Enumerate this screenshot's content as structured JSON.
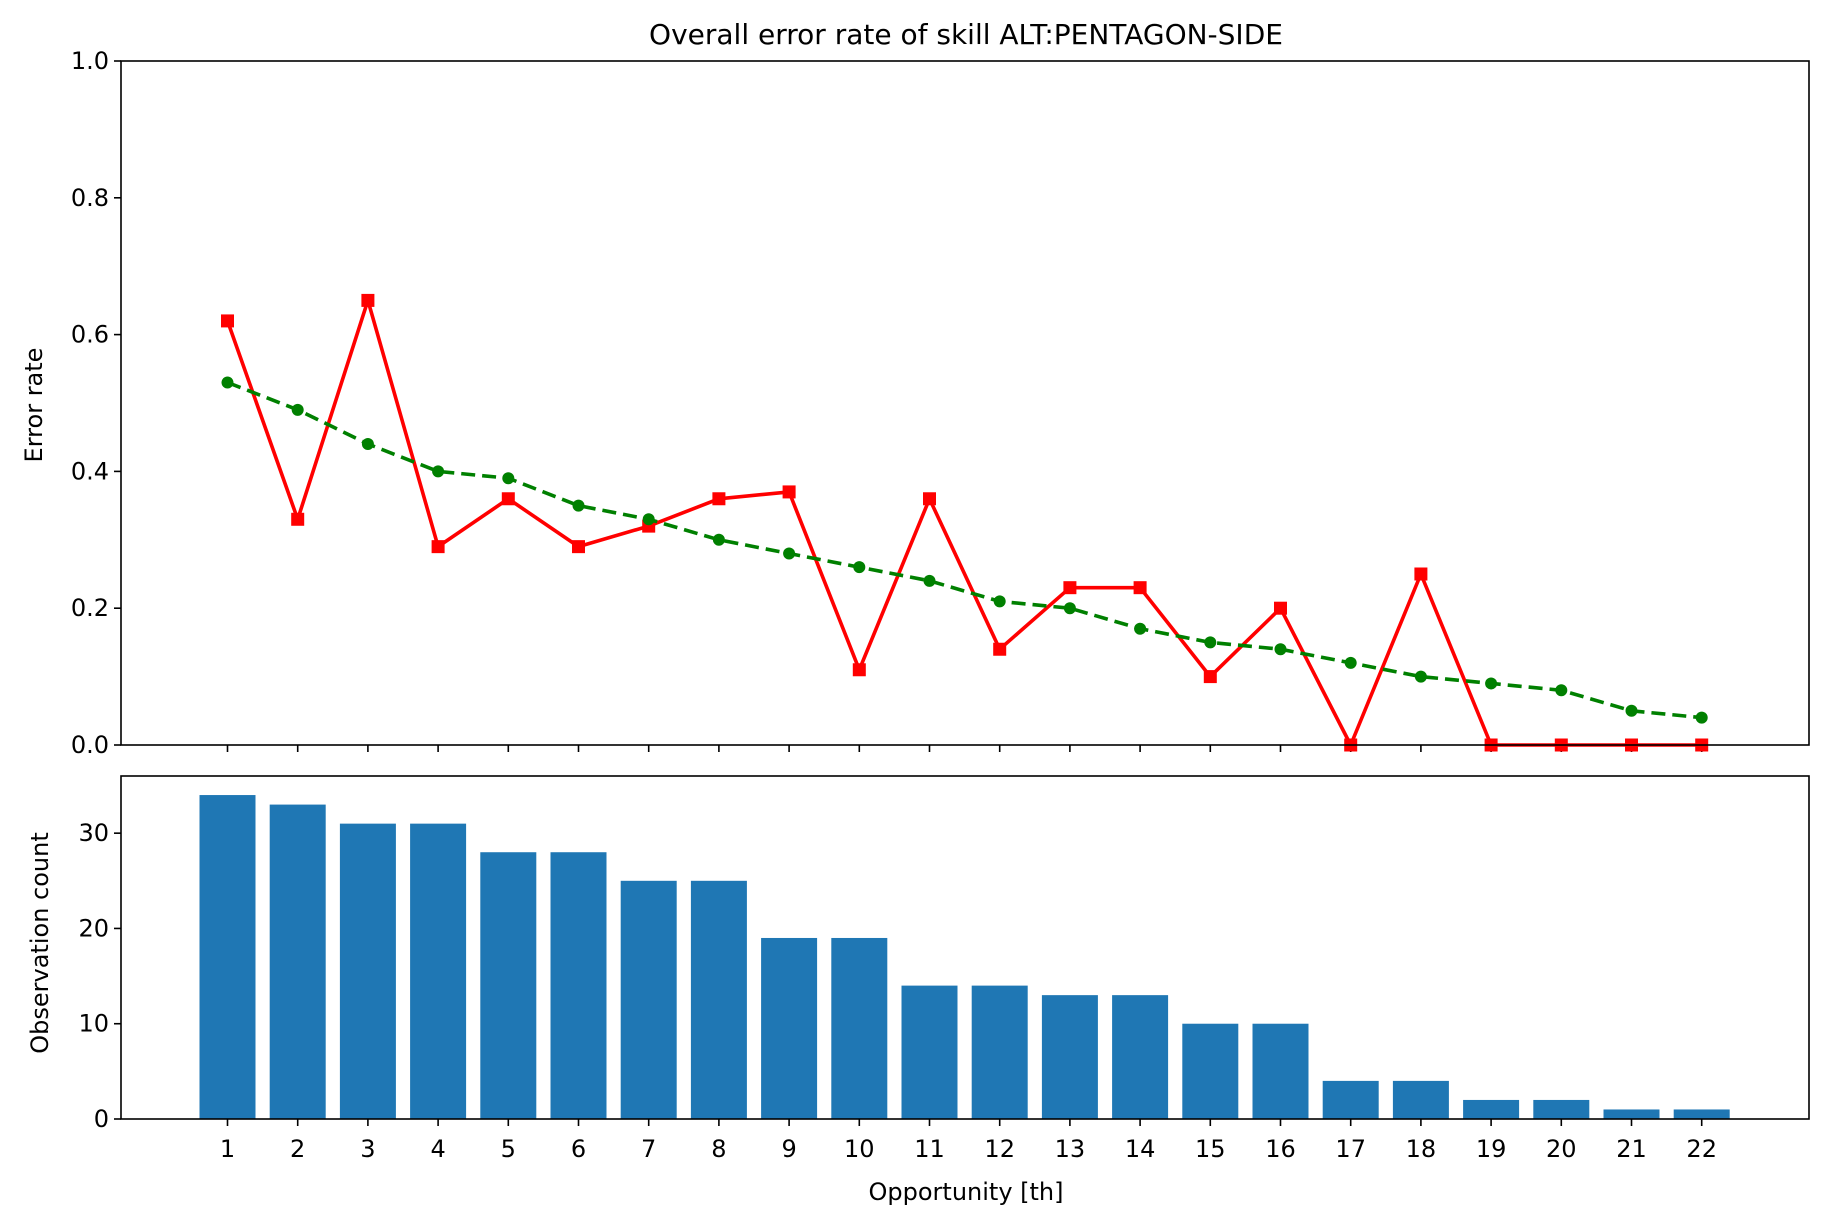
{
  "chart_data": [
    {
      "type": "line",
      "title": "Overall error rate of skill ALT:PENTAGON-SIDE",
      "xlabel": "",
      "ylabel": "Error rate",
      "ylim": [
        0,
        1
      ],
      "yticks": [
        "0.0",
        "0.2",
        "0.4",
        "0.6",
        "0.8",
        "1.0"
      ],
      "grid": false,
      "legend": "none",
      "x": [
        1,
        2,
        3,
        4,
        5,
        6,
        7,
        8,
        9,
        10,
        11,
        12,
        13,
        14,
        15,
        16,
        17,
        18,
        19,
        20,
        21,
        22
      ],
      "series": [
        {
          "color": "#ff0000",
          "line_style": "solid",
          "marker": "square",
          "values": [
            0.62,
            0.33,
            0.65,
            0.29,
            0.36,
            0.29,
            0.32,
            0.36,
            0.37,
            0.11,
            0.36,
            0.14,
            0.23,
            0.23,
            0.1,
            0.2,
            0.0,
            0.25,
            0.0,
            0.0,
            0.0,
            0.0
          ]
        },
        {
          "color": "#008000",
          "line_style": "dashed",
          "marker": "circle",
          "values": [
            0.53,
            0.49,
            0.44,
            0.4,
            0.39,
            0.35,
            0.33,
            0.3,
            0.28,
            0.26,
            0.24,
            0.21,
            0.2,
            0.17,
            0.15,
            0.14,
            0.12,
            0.1,
            0.09,
            0.08,
            0.05,
            0.04
          ]
        }
      ]
    },
    {
      "type": "bar",
      "title": "",
      "xlabel": "Opportunity [th]",
      "ylabel": "Observation count",
      "ylim": [
        0,
        36
      ],
      "yticks": [
        "0",
        "10",
        "20",
        "30"
      ],
      "grid": false,
      "legend": "none",
      "categories": [
        "1",
        "2",
        "3",
        "4",
        "5",
        "6",
        "7",
        "8",
        "9",
        "10",
        "11",
        "12",
        "13",
        "14",
        "15",
        "16",
        "17",
        "18",
        "19",
        "20",
        "21",
        "22"
      ],
      "color": "#1f77b4",
      "values": [
        34,
        33,
        31,
        31,
        28,
        28,
        25,
        25,
        19,
        19,
        14,
        14,
        13,
        13,
        10,
        10,
        4,
        4,
        2,
        2,
        1,
        1
      ]
    }
  ]
}
